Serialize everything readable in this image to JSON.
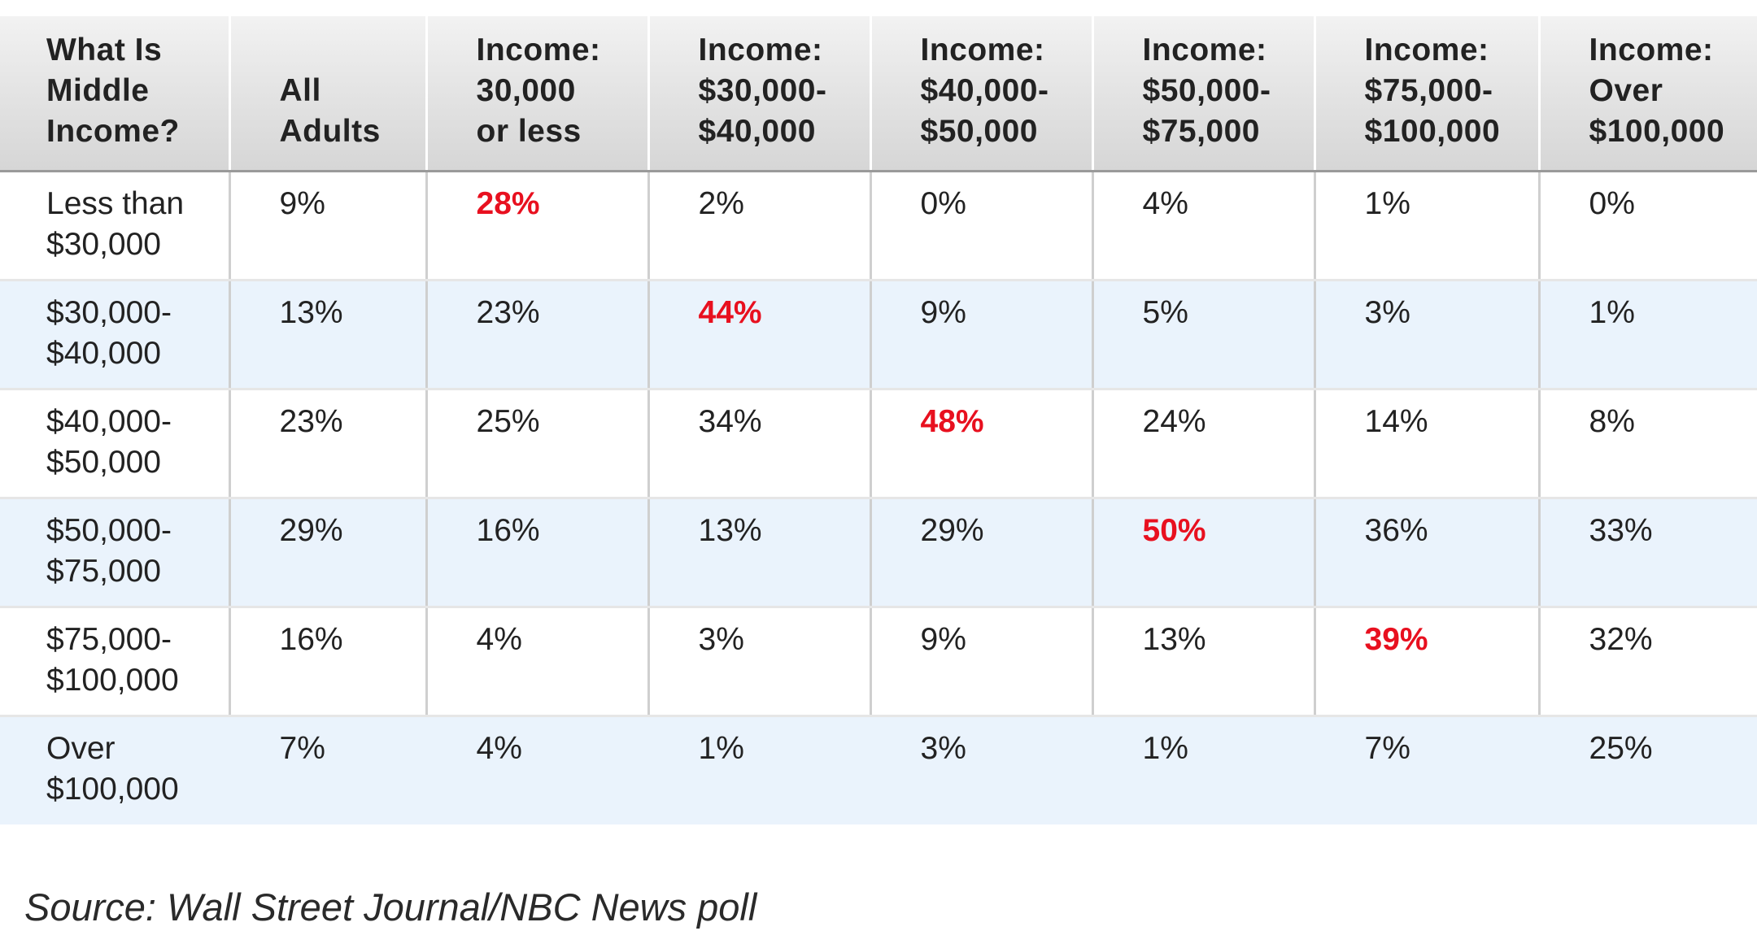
{
  "chart_data": {
    "type": "table",
    "columns": [
      [
        "What Is",
        "Middle",
        "Income?"
      ],
      [
        "All",
        "Adults"
      ],
      [
        "Income:",
        "30,000",
        "or less"
      ],
      [
        "Income:",
        "$30,000-",
        "$40,000"
      ],
      [
        "Income:",
        "$40,000-",
        "$50,000"
      ],
      [
        "Income:",
        "$50,000-",
        "$75,000"
      ],
      [
        "Income:",
        "$75,000-",
        "$100,000"
      ],
      [
        "Income:",
        "Over",
        "$100,000"
      ]
    ],
    "rows": [
      {
        "label": [
          "Less than",
          "$30,000"
        ],
        "values": [
          "9%",
          "28%",
          "2%",
          "0%",
          "4%",
          "1%",
          "0%"
        ],
        "highlight_index": 1
      },
      {
        "label": [
          "$30,000-",
          "$40,000"
        ],
        "values": [
          "13%",
          "23%",
          "44%",
          "9%",
          "5%",
          "3%",
          "1%"
        ],
        "highlight_index": 2
      },
      {
        "label": [
          "$40,000-",
          "$50,000"
        ],
        "values": [
          "23%",
          "25%",
          "34%",
          "48%",
          "24%",
          "14%",
          "8%"
        ],
        "highlight_index": 3
      },
      {
        "label": [
          "$50,000-",
          "$75,000"
        ],
        "values": [
          "29%",
          "16%",
          "13%",
          "29%",
          "50%",
          "36%",
          "33%"
        ],
        "highlight_index": 4
      },
      {
        "label": [
          "$75,000-",
          "$100,000"
        ],
        "values": [
          "16%",
          "4%",
          "3%",
          "9%",
          "13%",
          "39%",
          "32%"
        ],
        "highlight_index": 5
      },
      {
        "label": [
          "Over",
          "$100,000"
        ],
        "values": [
          "7%",
          "4%",
          "1%",
          "3%",
          "1%",
          "7%",
          "25%"
        ],
        "highlight_index": null
      }
    ],
    "source": "Source: Wall Street Journal/NBC News poll"
  },
  "colors": {
    "highlight": "#e8101f",
    "text": "#222222",
    "alt_row": "#eaf3fc",
    "header_bg": "#dcdcdc"
  }
}
